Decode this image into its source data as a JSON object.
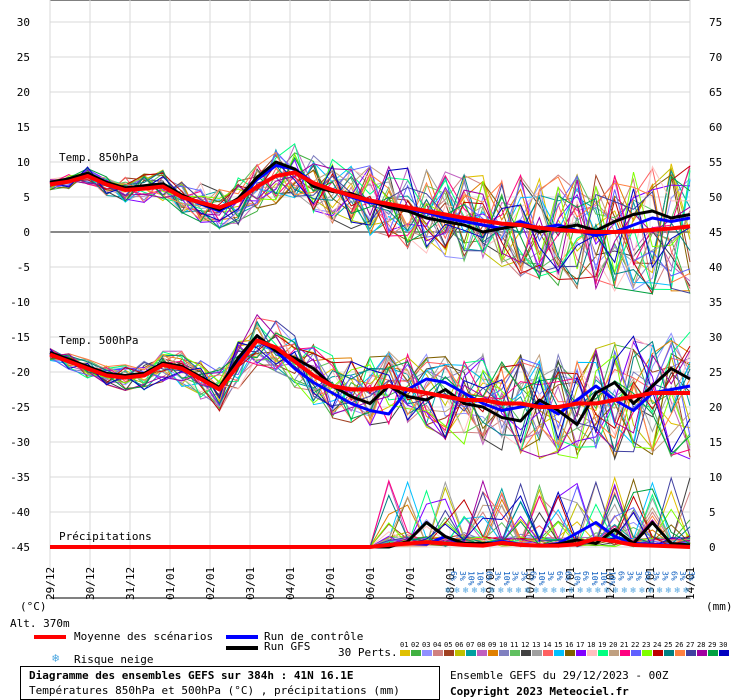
{
  "chart_data": {
    "type": "line",
    "title": "Diagramme des ensembles GEFS sur 384h : 41N 16.1E",
    "subtitle": "Températures 850hPa et 500hPa (°C) , précipitations (mm)",
    "left_axis": {
      "label": "(°C)",
      "ticks": [
        30,
        25,
        20,
        15,
        10,
        5,
        0,
        -5,
        -10,
        -15,
        -20,
        -25,
        -30,
        -35,
        -40,
        -45
      ],
      "ylim": [
        -45,
        30
      ]
    },
    "right_axis": {
      "label": "(mm)",
      "ticks": [
        75,
        70,
        65,
        60,
        55,
        50,
        45,
        40,
        35,
        30,
        25,
        20,
        15,
        10,
        5,
        0
      ],
      "ylim": [
        0,
        75
      ]
    },
    "x_ticks": [
      "29/12",
      "30/12",
      "31/12",
      "01/01",
      "02/01",
      "03/01",
      "04/01",
      "05/01",
      "06/01",
      "07/01",
      "08/01",
      "09/01",
      "10/01",
      "11/01",
      "12/01",
      "13/01",
      "14/01"
    ],
    "panel_labels": {
      "t850": "Temp. 850hPa",
      "t500": "Temp. 500hPa",
      "precip": "Précipitations"
    },
    "altitude": "Alt. 370m",
    "snow_risk_labels": [
      "6%",
      "3%",
      "10%",
      "10%",
      "6%",
      "3%",
      "10%",
      "3%",
      "3%",
      "6%",
      "10%",
      "3%",
      "6%",
      "6%",
      "10%",
      "6%",
      "10%",
      "10%",
      "10%",
      "6%",
      "3%",
      "3%",
      "6%",
      "3%",
      "3%",
      "6%",
      "3%",
      "3%"
    ],
    "series": [
      {
        "name": "Moyenne des scénarios (T850)",
        "color": "#ff0000",
        "values": [
          6.8,
          7.2,
          8.0,
          6.8,
          6.0,
          6.2,
          6.5,
          5.0,
          4.2,
          3.5,
          4.5,
          6.5,
          8.0,
          8.5,
          7.0,
          6.0,
          5.2,
          4.5,
          4.0,
          3.5,
          3.0,
          2.5,
          2.0,
          1.6,
          1.2,
          1.0,
          0.6,
          0.3,
          0.1,
          0.0,
          0.0,
          0.1,
          0.3,
          0.5,
          0.8
        ]
      },
      {
        "name": "Run de contrôle (T850)",
        "color": "#0000ff",
        "values": [
          7.0,
          7.5,
          8.3,
          7.0,
          6.2,
          6.5,
          6.8,
          5.2,
          4.0,
          3.0,
          4.5,
          7.5,
          9.5,
          9.0,
          7.0,
          6.0,
          5.0,
          4.2,
          3.8,
          3.2,
          2.8,
          2.0,
          1.5,
          1.0,
          0.5,
          1.5,
          0.5,
          1.0,
          0.2,
          -0.5,
          0.0,
          1.0,
          2.0,
          1.5,
          2.0
        ]
      },
      {
        "name": "Run GFS (T850)",
        "color": "#000000",
        "values": [
          7.1,
          7.6,
          8.4,
          7.1,
          6.3,
          6.6,
          6.9,
          5.3,
          4.1,
          3.2,
          4.8,
          7.8,
          10.0,
          9.0,
          6.5,
          5.8,
          5.5,
          4.5,
          3.5,
          3.0,
          2.0,
          1.5,
          1.0,
          0.0,
          0.5,
          1.0,
          0.0,
          0.5,
          1.0,
          0.2,
          1.5,
          2.5,
          3.0,
          2.0,
          2.5
        ]
      },
      {
        "name": "Moyenne des scénarios (T500)",
        "color": "#ff0000",
        "values": [
          -17.5,
          -18.5,
          -19.5,
          -20.5,
          -20.8,
          -20.5,
          -19.0,
          -19.5,
          -21.0,
          -22.5,
          -19.0,
          -15.5,
          -16.5,
          -18.5,
          -20.5,
          -22.0,
          -22.5,
          -22.5,
          -22.0,
          -22.5,
          -23.0,
          -23.5,
          -24.0,
          -24.0,
          -24.5,
          -24.5,
          -25.0,
          -25.0,
          -24.5,
          -24.5,
          -24.0,
          -23.5,
          -23.0,
          -23.0,
          -23.0
        ]
      },
      {
        "name": "Run de contrôle (T500)",
        "color": "#0000ff",
        "values": [
          -17.3,
          -18.3,
          -19.3,
          -20.3,
          -20.6,
          -20.3,
          -18.8,
          -19.3,
          -20.8,
          -22.3,
          -18.5,
          -15.5,
          -17.0,
          -19.5,
          -21.5,
          -23.0,
          -24.5,
          -25.5,
          -26.0,
          -22.5,
          -21.0,
          -21.5,
          -23.0,
          -24.5,
          -25.5,
          -25.0,
          -24.5,
          -26.0,
          -24.0,
          -22.0,
          -24.0,
          -25.5,
          -23.0,
          -22.5,
          -22.0
        ]
      },
      {
        "name": "Run GFS (T500)",
        "color": "#000000",
        "values": [
          -17.2,
          -18.2,
          -19.2,
          -20.2,
          -20.5,
          -20.2,
          -18.7,
          -19.2,
          -20.7,
          -22.2,
          -18.0,
          -14.8,
          -17.0,
          -18.0,
          -19.5,
          -22.0,
          -23.5,
          -24.5,
          -22.0,
          -23.5,
          -24.0,
          -22.5,
          -24.5,
          -25.0,
          -26.5,
          -27.0,
          -24.0,
          -25.5,
          -27.5,
          -23.0,
          -21.5,
          -24.5,
          -22.0,
          -19.5,
          -21.0
        ]
      },
      {
        "name": "Moyenne des scénarios (précip. mm)",
        "color": "#ff0000",
        "values": [
          0,
          0,
          0,
          0,
          0,
          0,
          0,
          0,
          0,
          0,
          0,
          0,
          0,
          0,
          0,
          0,
          0,
          0,
          0.3,
          0.5,
          0.7,
          0.5,
          0.3,
          0.2,
          0.6,
          0.3,
          0.2,
          0.2,
          0.4,
          1.2,
          0.8,
          0.3,
          0.2,
          0.1,
          0.0
        ]
      },
      {
        "name": "Run de contrôle (précip. mm)",
        "color": "#0000ff",
        "values": [
          0,
          0,
          0,
          0,
          0,
          0,
          0,
          0,
          0,
          0,
          0,
          0,
          0,
          0,
          0,
          0,
          0,
          0,
          0.2,
          0.5,
          0.4,
          1.5,
          0.3,
          0.3,
          0.8,
          0.4,
          0.2,
          0.5,
          2.0,
          3.5,
          1.5,
          0.5,
          0.4,
          0.2,
          0.1
        ]
      },
      {
        "name": "Run GFS (précip. mm)",
        "color": "#000000",
        "values": [
          0,
          0,
          0,
          0,
          0,
          0,
          0,
          0,
          0,
          0,
          0,
          0,
          0,
          0,
          0,
          0,
          0,
          0,
          0,
          0.8,
          3.5,
          1.5,
          0.5,
          0.5,
          0.5,
          0.3,
          0.2,
          0.4,
          1.0,
          0.5,
          2.5,
          0.5,
          3.5,
          0.5,
          0.3
        ]
      }
    ]
  },
  "legend": {
    "mean": "Moyenne des scénarios",
    "control": "Run de contrôle",
    "gfs": "Run GFS",
    "snow": "Risque neige",
    "perts_label": "30 Perts.",
    "perts": [
      "01",
      "02",
      "03",
      "04",
      "05",
      "06",
      "07",
      "08",
      "09",
      "10",
      "11",
      "12",
      "13",
      "14",
      "15",
      "16",
      "17",
      "18",
      "19",
      "20",
      "21",
      "22",
      "23",
      "24",
      "25",
      "26",
      "27",
      "28",
      "29",
      "30"
    ],
    "pert_colors": [
      "#e0c000",
      "#40b040",
      "#9090ff",
      "#d08080",
      "#a04020",
      "#c0c000",
      "#00a0a0",
      "#c060c0",
      "#e08000",
      "#8080c0",
      "#60c060",
      "#404040",
      "#a0a0a0",
      "#ff6060",
      "#00c0ff",
      "#806000",
      "#8000ff",
      "#ffc0c0",
      "#00ff80",
      "#c0a080",
      "#ff0080",
      "#6060ff",
      "#80ff00",
      "#c00000",
      "#008080",
      "#ff8040",
      "#4040a0",
      "#a000a0",
      "#00a040",
      "#0000c0"
    ]
  },
  "footer": {
    "title": "Diagramme des ensembles GEFS sur 384h : 41N 16.1E",
    "subtitle": "Températures 850hPa et 500hPa (°C) , précipitations (mm)",
    "ensemble": "Ensemble GEFS du 29/12/2023 - 00Z",
    "copyright": "Copyright 2023 Meteociel.fr"
  }
}
